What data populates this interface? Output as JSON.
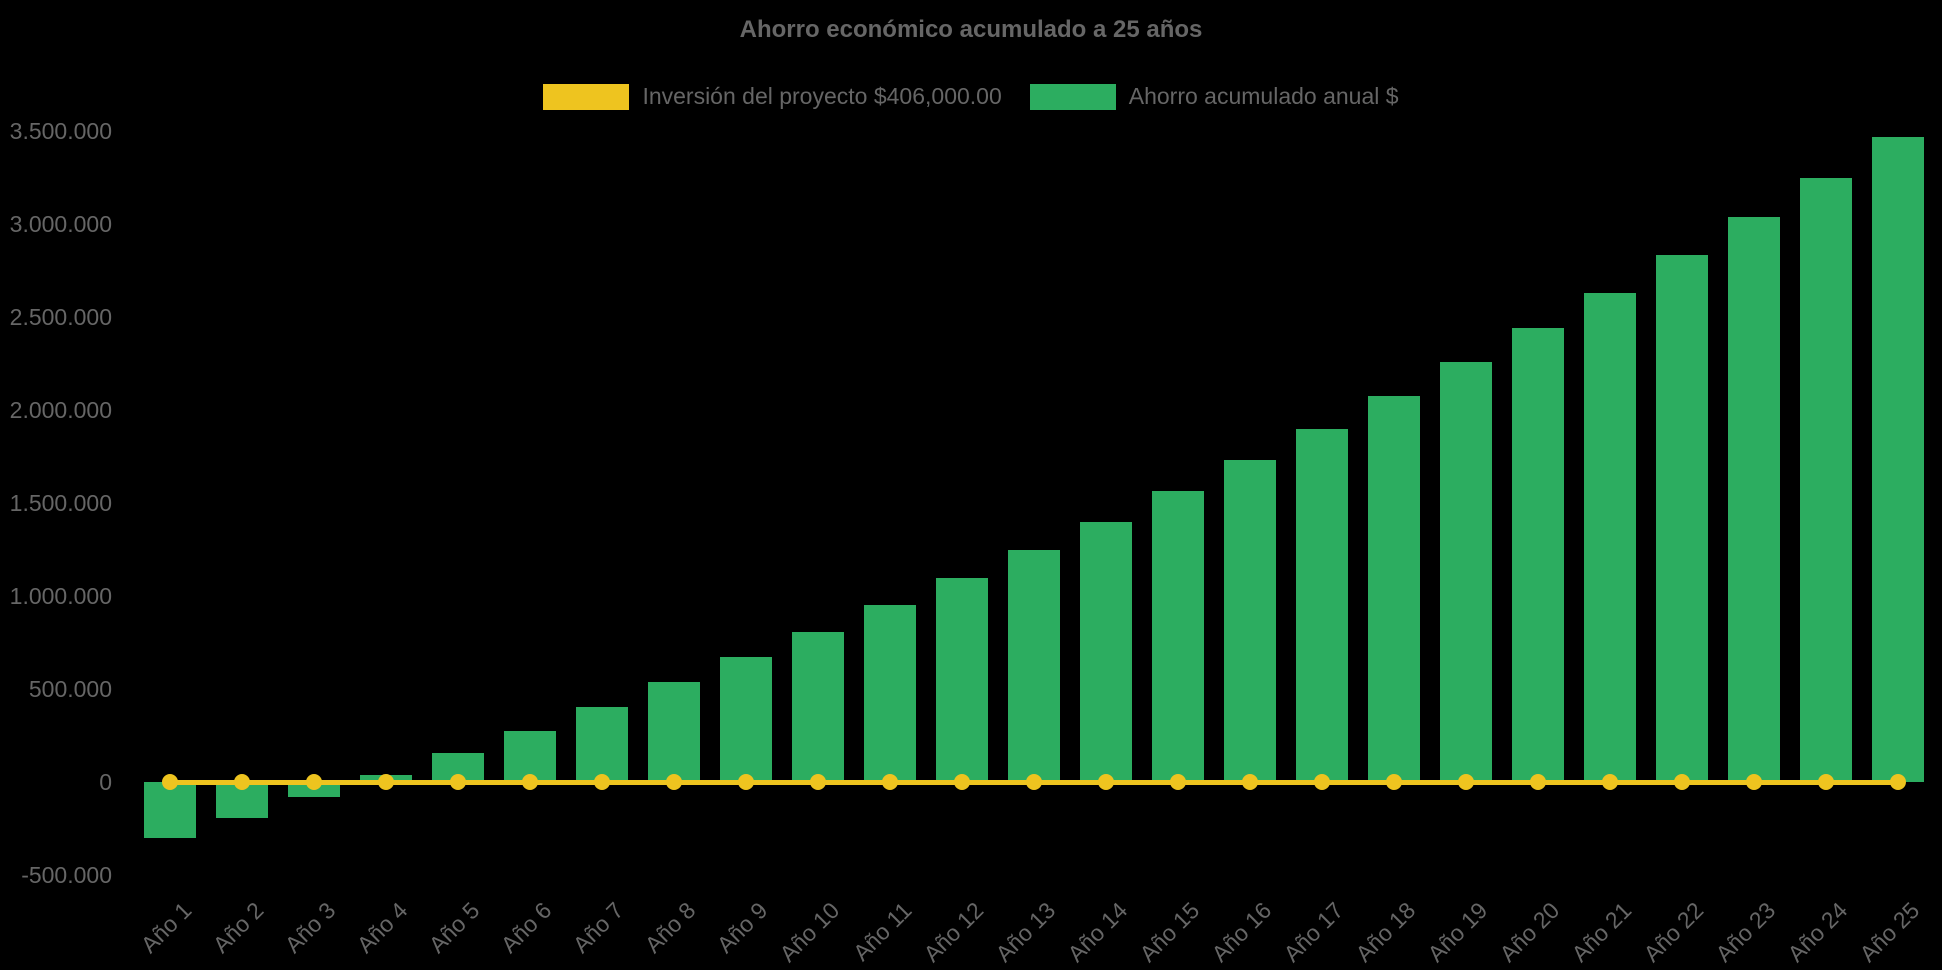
{
  "chart": {
    "title": "Ahorro económico acumulado a 25 años",
    "background_color": "#000000",
    "text_color": "#666666",
    "accent_colors": {
      "investment_yellow": "#EEC41F",
      "savings_green": "#2CAD60"
    },
    "legend": {
      "position": "top",
      "items": [
        {
          "label": "Inversión del proyecto $406,000.00",
          "color": "#EEC41F",
          "swatch": "yellow-box"
        },
        {
          "label": "Ahorro acumulado anual $",
          "color": "#2CAD60",
          "swatch": "green-box"
        }
      ]
    }
  },
  "chart_data": {
    "type": "bar",
    "title": "Ahorro económico acumulado a 25 años",
    "categories": [
      "Año 1",
      "Año 2",
      "Año 3",
      "Año 4",
      "Año 5",
      "Año 6",
      "Año 7",
      "Año 8",
      "Año 9",
      "Año 10",
      "Año 11",
      "Año 12",
      "Año 13",
      "Año 14",
      "Año 15",
      "Año 16",
      "Año 17",
      "Año 18",
      "Año 19",
      "Año 20",
      "Año 21",
      "Año 22",
      "Año 23",
      "Año 24",
      "Año 25"
    ],
    "series": [
      {
        "name": "Inversión del proyecto $406,000.00",
        "type": "line",
        "color": "#EEC41F",
        "point_style": "circle",
        "values": [
          0,
          0,
          0,
          0,
          0,
          0,
          0,
          0,
          0,
          0,
          0,
          0,
          0,
          0,
          0,
          0,
          0,
          0,
          0,
          0,
          0,
          0,
          0,
          0,
          0
        ]
      },
      {
        "name": "Ahorro acumulado anual $",
        "type": "bar",
        "color": "#2CAD60",
        "values": [
          -300000,
          -195000,
          -80000,
          35000,
          155000,
          275000,
          405000,
          540000,
          670000,
          805000,
          950000,
          1095000,
          1245000,
          1400000,
          1565000,
          1730000,
          1900000,
          2075000,
          2260000,
          2440000,
          2630000,
          2835000,
          3040000,
          3250000,
          3470000
        ]
      }
    ],
    "xlabel": "",
    "ylabel": "",
    "ylim": [
      -500000,
      3500000
    ],
    "ytick_step": 500000,
    "ytick_labels": [
      "3.500.000",
      "3.000.000",
      "2.500.000",
      "2.000.000",
      "1.500.000",
      "1.000.000",
      "500.000",
      "0",
      "-500.000"
    ],
    "x_tick_rotation_deg": -45,
    "grid": false,
    "legend_position": "top"
  }
}
